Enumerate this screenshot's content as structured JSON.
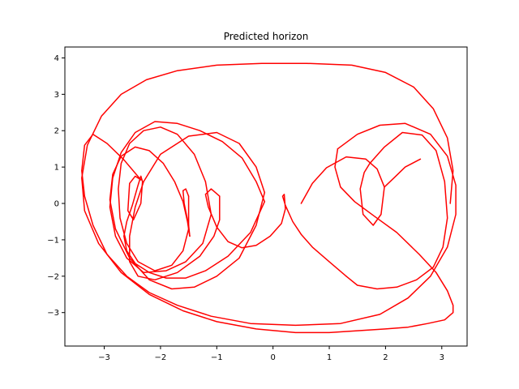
{
  "chart_data": {
    "type": "line",
    "title": "Predicted horizon",
    "xlabel": "",
    "ylabel": "",
    "xlim": [
      -3.7,
      3.45
    ],
    "ylim": [
      -3.92,
      4.3
    ],
    "xticks": [
      -3,
      -2,
      -1,
      0,
      1,
      2,
      3
    ],
    "yticks": [
      -3,
      -2,
      -1,
      0,
      1,
      2,
      3,
      4
    ],
    "xtick_labels": [
      "−3",
      "−2",
      "−1",
      "0",
      "1",
      "2",
      "3"
    ],
    "ytick_labels": [
      "−3",
      "−2",
      "−1",
      "0",
      "1",
      "2",
      "3",
      "4"
    ],
    "grid": false,
    "legend": "none",
    "series": [
      {
        "color": "#ff0000",
        "x": [
          0.5,
          0.7,
          0.95,
          1.3,
          1.65,
          1.85,
          1.98,
          2.15,
          2.35,
          2.62
        ],
        "y": [
          0.0,
          0.55,
          0.98,
          1.28,
          1.22,
          0.95,
          0.45,
          0.7,
          1.0,
          1.22
        ]
      },
      {
        "color": "#ff0000",
        "x": [
          1.98,
          1.92,
          1.78,
          1.6,
          1.55,
          1.62,
          1.72,
          1.98,
          2.3,
          2.65,
          2.9,
          3.05,
          3.1,
          3.02,
          2.85,
          2.55,
          2.2,
          1.85,
          1.5,
          1.3
        ],
        "y": [
          0.45,
          -0.3,
          -0.6,
          -0.3,
          0.4,
          0.85,
          1.1,
          1.55,
          1.95,
          1.88,
          1.45,
          0.6,
          -0.4,
          -1.2,
          -1.75,
          -2.1,
          -2.3,
          -2.35,
          -2.25,
          -2.0
        ]
      },
      {
        "color": "#ff0000",
        "x": [
          1.3,
          1.0,
          0.7,
          0.5,
          0.35,
          0.22,
          0.17,
          0.2,
          0.22,
          0.15,
          -0.05,
          -0.3,
          -0.55,
          -0.8,
          -1.0,
          -1.15,
          -1.2,
          -1.1,
          -0.95
        ],
        "y": [
          -2.0,
          -1.6,
          -1.2,
          -0.85,
          -0.5,
          -0.05,
          0.2,
          0.25,
          -0.15,
          -0.55,
          -0.9,
          -1.15,
          -1.22,
          -1.05,
          -0.65,
          -0.1,
          0.25,
          0.4,
          0.2
        ]
      },
      {
        "color": "#ff0000",
        "x": [
          -0.95,
          -0.95,
          -1.05,
          -1.3,
          -1.7,
          -2.1,
          -2.4,
          -2.55,
          -2.55,
          -2.45,
          -2.3,
          -2.0,
          -1.5,
          -1.0,
          -0.6,
          -0.3,
          -0.15
        ],
        "y": [
          0.2,
          -0.45,
          -0.9,
          -1.45,
          -1.9,
          -2.1,
          -2.0,
          -1.6,
          -0.9,
          -0.1,
          0.6,
          1.35,
          1.85,
          1.95,
          1.65,
          1.0,
          0.3
        ]
      },
      {
        "color": "#ff0000",
        "x": [
          -0.15,
          -0.3,
          -0.6,
          -1.0,
          -1.4,
          -1.8,
          -2.2,
          -2.55,
          -2.8,
          -2.9,
          -2.85,
          -2.7,
          -2.45,
          -2.2,
          -1.95,
          -1.75,
          -1.6,
          -1.52,
          -1.48
        ],
        "y": [
          0.3,
          -0.6,
          -1.5,
          -2.0,
          -2.3,
          -2.35,
          -2.1,
          -1.5,
          -0.7,
          0.1,
          0.8,
          1.3,
          1.55,
          1.45,
          1.1,
          0.6,
          0.05,
          -0.5,
          -0.9
        ]
      },
      {
        "color": "#ff0000",
        "x": [
          -1.48,
          -1.5,
          -1.58,
          -1.6,
          -1.55,
          -1.5
        ],
        "y": [
          -0.9,
          -0.6,
          0.0,
          0.35,
          0.4,
          0.2
        ]
      },
      {
        "color": "#ff0000",
        "x": [
          -1.5,
          -1.5,
          -1.6,
          -1.8,
          -2.1,
          -2.4,
          -2.6,
          -2.72,
          -2.75,
          -2.7,
          -2.55,
          -2.3,
          -2.0,
          -1.7,
          -1.4,
          -1.2
        ],
        "y": [
          0.2,
          -0.7,
          -1.3,
          -1.7,
          -1.85,
          -1.6,
          -1.1,
          -0.4,
          0.4,
          1.1,
          1.65,
          2.0,
          2.1,
          1.9,
          1.35,
          0.6
        ]
      },
      {
        "color": "#ff0000",
        "x": [
          -1.2,
          -1.1,
          -1.25,
          -1.55,
          -1.9,
          -2.3,
          -2.6,
          -2.8,
          -2.9,
          -2.85,
          -2.7,
          -2.45,
          -2.1,
          -1.7,
          -1.3,
          -0.9,
          -0.55,
          -0.3,
          -0.15
        ],
        "y": [
          0.6,
          -0.3,
          -1.1,
          -1.6,
          -1.85,
          -1.9,
          -1.5,
          -0.9,
          -0.1,
          0.7,
          1.4,
          1.95,
          2.25,
          2.2,
          2.0,
          1.7,
          1.25,
          0.6,
          0.05
        ]
      },
      {
        "color": "#ff0000",
        "x": [
          -0.15,
          -0.4,
          -0.8,
          -1.2,
          -1.55,
          -1.9,
          -2.2,
          -2.45,
          -2.6,
          -2.65,
          -2.6,
          -2.5,
          -2.4,
          -2.35,
          -2.32
        ],
        "y": [
          0.05,
          -0.8,
          -1.45,
          -1.85,
          -2.05,
          -2.05,
          -1.9,
          -1.65,
          -1.3,
          -0.9,
          -0.5,
          -0.05,
          0.5,
          0.75,
          0.6
        ]
      },
      {
        "color": "#ff0000",
        "x": [
          -2.32,
          -2.35,
          -2.48,
          -2.58,
          -2.55,
          -2.45,
          -2.35
        ],
        "y": [
          0.6,
          0.0,
          -0.45,
          -0.2,
          0.55,
          0.75,
          0.65
        ]
      },
      {
        "color": "#ff0000",
        "x": [
          -2.35,
          -2.65,
          -2.95,
          -3.2,
          -3.35,
          -3.4,
          -3.35,
          -3.2,
          -2.95,
          -2.6,
          -2.2,
          -1.7,
          -1.1,
          -0.4,
          0.4,
          1.2,
          1.9,
          2.4,
          2.8,
          3.1,
          3.25,
          3.25,
          3.1,
          2.8,
          2.35,
          1.9,
          1.5,
          1.15
        ],
        "y": [
          0.65,
          1.2,
          1.65,
          1.9,
          1.6,
          0.9,
          0.2,
          -0.6,
          -1.4,
          -2.0,
          -2.45,
          -2.8,
          -3.1,
          -3.3,
          -3.35,
          -3.3,
          -3.05,
          -2.6,
          -2.0,
          -1.2,
          -0.3,
          0.5,
          1.3,
          1.9,
          2.2,
          2.15,
          1.9,
          1.5
        ]
      },
      {
        "color": "#ff0000",
        "x": [
          1.15,
          1.1,
          1.2,
          1.45,
          1.8,
          2.2,
          2.6,
          2.9,
          3.1,
          3.2,
          3.2,
          3.05,
          2.75,
          2.4,
          2.0,
          1.5,
          1.0,
          0.4,
          -0.3,
          -1.0,
          -1.6,
          -2.2,
          -2.7,
          -3.1,
          -3.35,
          -3.4,
          -3.3,
          -3.05,
          -2.7,
          -2.25,
          -1.7,
          -1.0,
          -0.2,
          0.6,
          1.4,
          2.0,
          2.5,
          2.85,
          3.1,
          3.2,
          3.15
        ],
        "y": [
          1.5,
          1.0,
          0.45,
          0.05,
          -0.35,
          -0.8,
          -1.4,
          -1.9,
          -2.4,
          -2.8,
          -3.0,
          -3.2,
          -3.3,
          -3.4,
          -3.45,
          -3.5,
          -3.55,
          -3.55,
          -3.45,
          -3.25,
          -2.95,
          -2.5,
          -1.9,
          -1.1,
          -0.2,
          0.7,
          1.6,
          2.4,
          3.0,
          3.4,
          3.65,
          3.8,
          3.85,
          3.85,
          3.8,
          3.6,
          3.2,
          2.6,
          1.8,
          0.9,
          0.0
        ]
      }
    ]
  }
}
